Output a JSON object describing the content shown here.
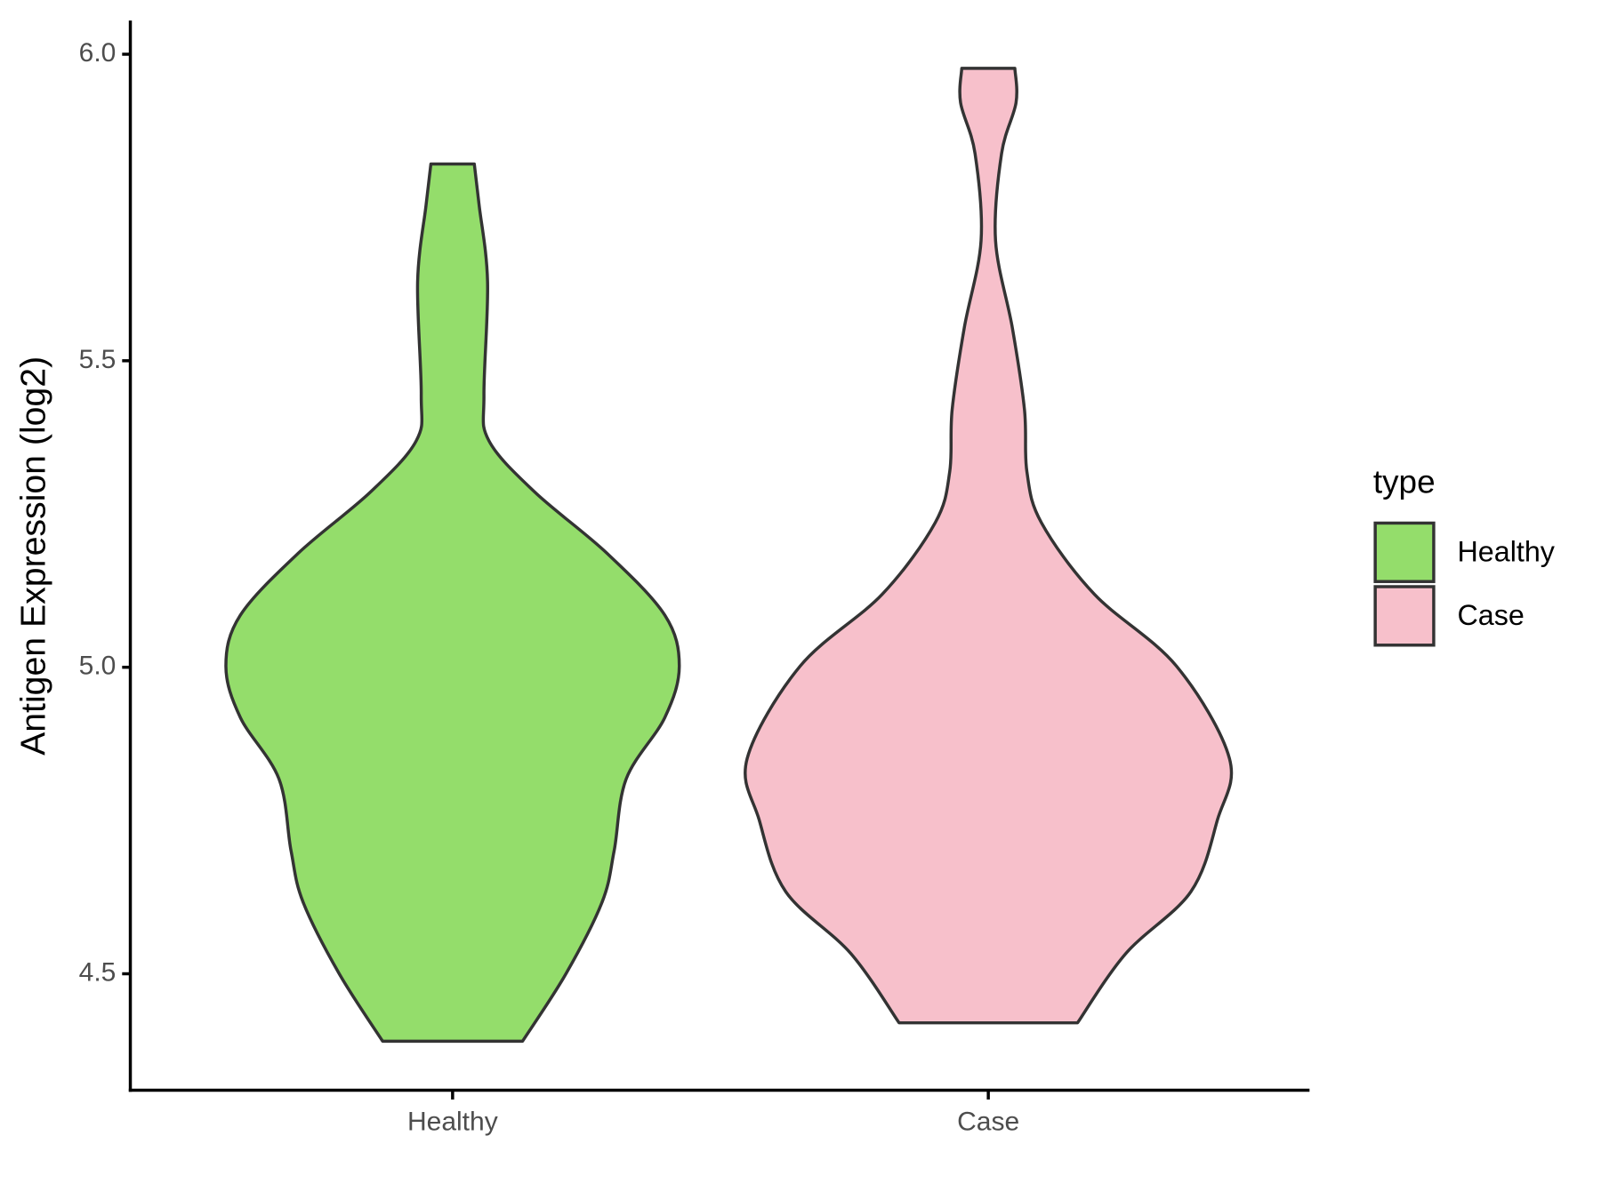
{
  "chart_data": {
    "type": "violin",
    "ylabel": "Antigen Expression (log2)",
    "categories": [
      "Healthy",
      "Case"
    ],
    "legend_title": "type",
    "legend": "right",
    "ylim": [
      4.31,
      6.055
    ],
    "yticks": [
      {
        "value": 4.5,
        "label": "4.5"
      },
      {
        "value": 5,
        "label": "5.0"
      },
      {
        "value": 5.5,
        "label": "5.5"
      },
      {
        "value": 6,
        "label": "6.0"
      }
    ],
    "series": [
      {
        "name": "Healthy",
        "color": "#94dd6b",
        "values": [
          5.821,
          5.754,
          5.629,
          5.445,
          5.37,
          5.286,
          5.186,
          5.085,
          5.002,
          4.918,
          4.818,
          4.701,
          4.617,
          4.5,
          4.39
        ],
        "widths": [
          0.09,
          0.11,
          0.145,
          0.13,
          0.15,
          0.34,
          0.64,
          0.88,
          0.94,
          0.88,
          0.72,
          0.67,
          0.62,
          0.47,
          0.29
        ]
      },
      {
        "name": "Case",
        "color": "#f7c0cb",
        "values": [
          5.977,
          5.921,
          5.838,
          5.696,
          5.553,
          5.42,
          5.319,
          5.236,
          5.119,
          5.002,
          4.851,
          4.751,
          4.634,
          4.533,
          4.42
        ],
        "widths": [
          0.11,
          0.115,
          0.055,
          0.03,
          0.1,
          0.15,
          0.16,
          0.22,
          0.44,
          0.78,
          1.0,
          0.95,
          0.84,
          0.57,
          0.37
        ]
      }
    ]
  }
}
